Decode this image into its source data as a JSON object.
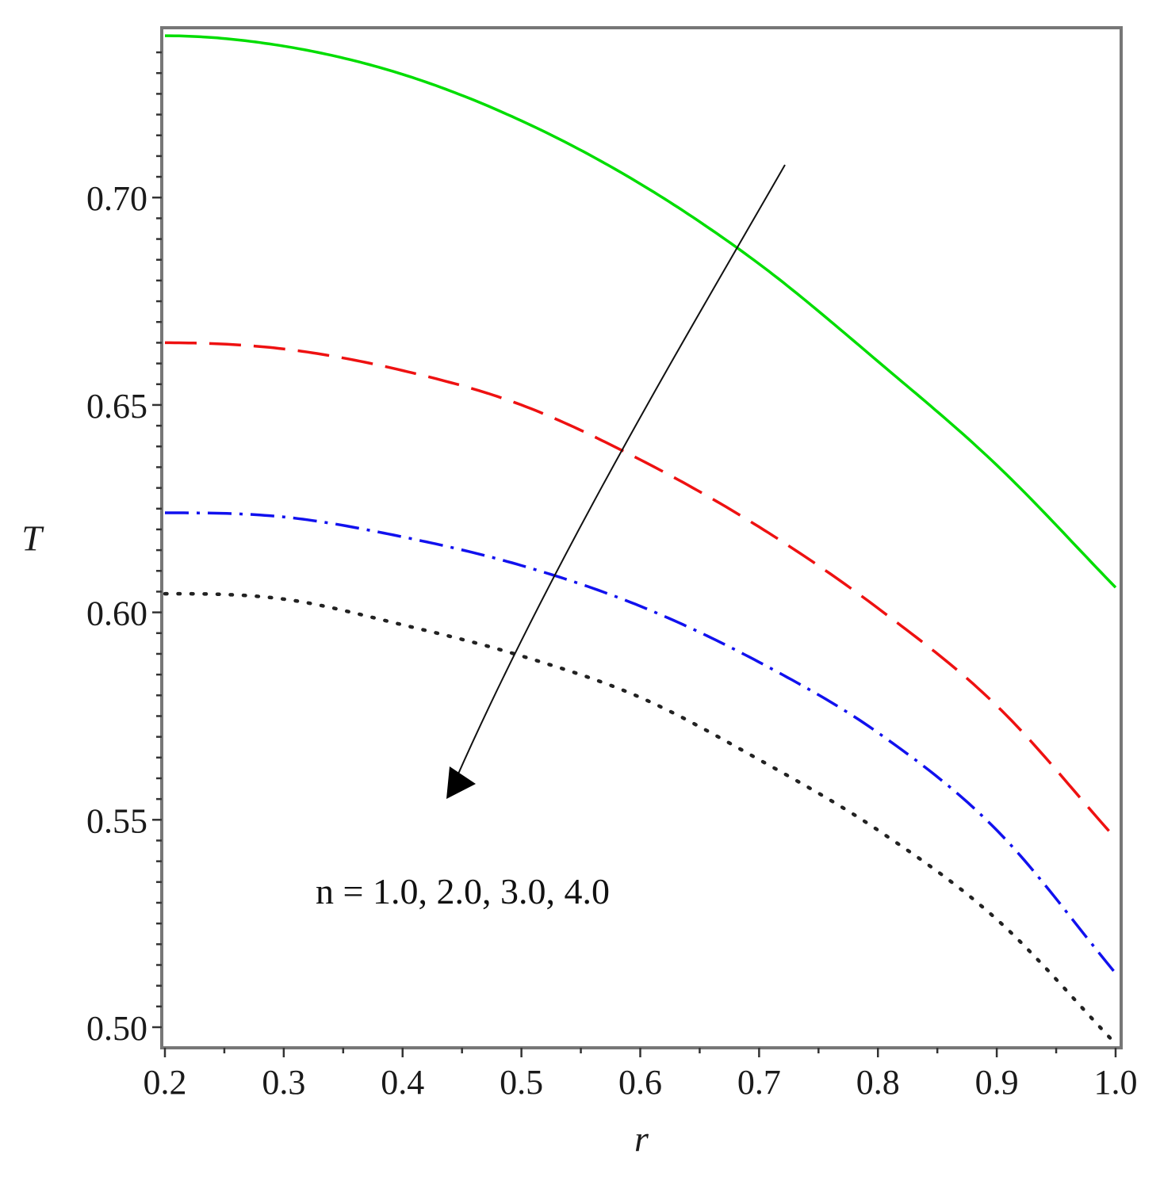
{
  "chart_data": {
    "type": "line",
    "xlabel": "r",
    "ylabel": "T",
    "xlim": [
      0.2,
      1.0
    ],
    "ylim": [
      0.495,
      0.7395
    ],
    "x_ticks": [
      "0.2",
      "0.3",
      "0.4",
      "0.5",
      "0.6",
      "0.7",
      "0.8",
      "0.9",
      "1.0"
    ],
    "y_ticks": [
      "0.50",
      "0.55",
      "0.60",
      "0.65",
      "0.70"
    ],
    "grid": false,
    "legend": "none",
    "x": [
      0.2,
      0.3,
      0.4,
      0.5,
      0.6,
      0.7,
      0.8,
      0.9,
      1.0
    ],
    "series": [
      {
        "color": "#00dd00",
        "dash": "solid",
        "values": [
          0.739,
          0.7365,
          0.7297,
          0.7185,
          0.7033,
          0.684,
          0.6605,
          0.6355,
          0.606
        ]
      },
      {
        "color": "#ee1111",
        "dash": "dashed",
        "values": [
          0.665,
          0.6635,
          0.6583,
          0.65,
          0.6368,
          0.6206,
          0.601,
          0.5775,
          0.5455
        ]
      },
      {
        "color": "#1111ee",
        "dash": "dashdot",
        "values": [
          0.624,
          0.623,
          0.6182,
          0.6113,
          0.6015,
          0.588,
          0.571,
          0.5475,
          0.513
        ]
      },
      {
        "color": "#222222",
        "dash": "dotted",
        "values": [
          0.6045,
          0.6032,
          0.597,
          0.5895,
          0.5795,
          0.5645,
          0.5475,
          0.526,
          0.496
        ]
      }
    ],
    "annotations": [
      {
        "text": "n = 1.0, 2.0, 3.0, 4.0"
      }
    ]
  }
}
